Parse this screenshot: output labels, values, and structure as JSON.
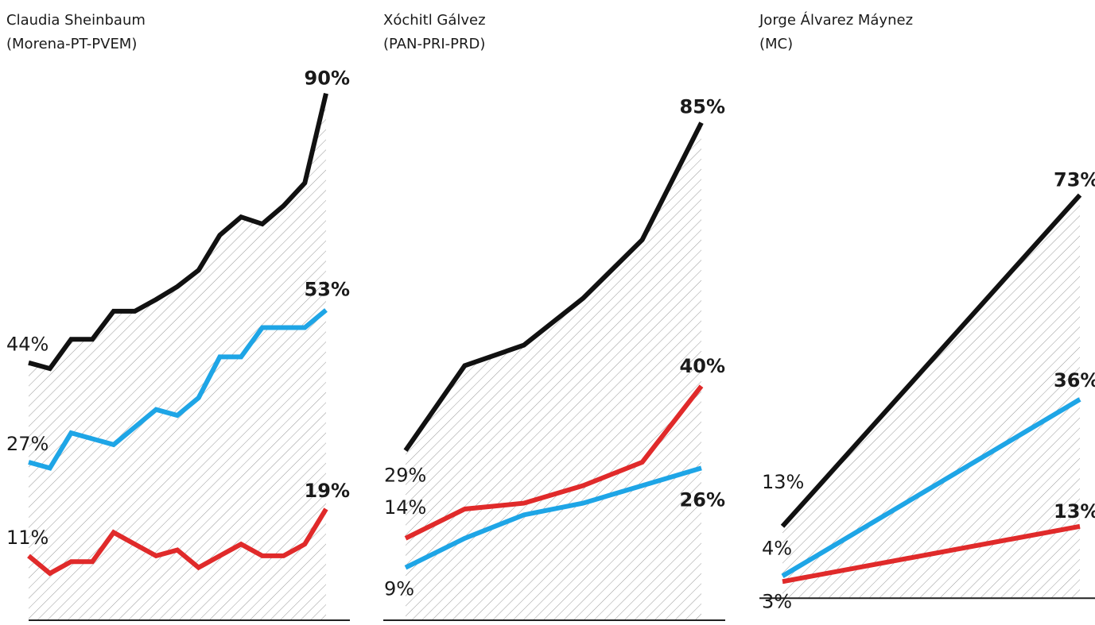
{
  "chart_data": [
    {
      "type": "line",
      "title": "Claudia Sheinbaum",
      "subtitle": "(Morena-PT-PVEM)",
      "ylim": [
        0,
        100
      ],
      "hatch": true,
      "series": [
        {
          "color": "#111111",
          "values": [
            44,
            43,
            48,
            48,
            52.8,
            52.8,
            54.8,
            57,
            59.8,
            65.8,
            68.9,
            67.7,
            70.8,
            74.7,
            90
          ],
          "value_labels": [
            "44%",
            null,
            null,
            null,
            null,
            null,
            null,
            null,
            null,
            null,
            null,
            null,
            null,
            null,
            "90%"
          ]
        },
        {
          "color": "#1ea5e6",
          "values": [
            27,
            26,
            32,
            31,
            30,
            33,
            36,
            35,
            38,
            45,
            45,
            50,
            50,
            50,
            53
          ],
          "value_labels": [
            "27%",
            null,
            null,
            null,
            null,
            null,
            null,
            null,
            null,
            null,
            null,
            null,
            null,
            null,
            "53%"
          ]
        },
        {
          "color": "#e02a2a",
          "values": [
            11,
            8,
            10,
            10,
            15,
            13,
            11,
            12,
            9,
            11,
            13,
            11,
            11,
            13,
            19
          ],
          "value_labels": [
            "11%",
            null,
            null,
            null,
            null,
            null,
            null,
            null,
            null,
            null,
            null,
            null,
            null,
            null,
            "19%"
          ]
        }
      ]
    },
    {
      "type": "line",
      "title": "Xóchitl Gálvez",
      "subtitle": "(PAN-PRI-PRD)",
      "ylim": [
        0,
        100
      ],
      "hatch": true,
      "series": [
        {
          "color": "#111111",
          "values": [
            29,
            43.5,
            47,
            55,
            65,
            85
          ],
          "value_labels": [
            "29%",
            null,
            null,
            null,
            null,
            "85%"
          ]
        },
        {
          "color": "#e02a2a",
          "values": [
            14,
            19,
            20,
            23,
            27,
            40
          ],
          "value_labels": [
            "14%",
            null,
            null,
            null,
            null,
            "40%"
          ]
        },
        {
          "color": "#1ea5e6",
          "values": [
            9,
            14,
            18,
            20,
            23,
            26
          ],
          "value_labels": [
            "9%",
            null,
            null,
            null,
            null,
            "26%"
          ]
        }
      ]
    },
    {
      "type": "line",
      "title": "Jorge Álvarez Máynez",
      "subtitle": "(MC)",
      "ylim": [
        -4,
        102
      ],
      "hatch": true,
      "series": [
        {
          "color": "#111111",
          "values": [
            13,
            73
          ],
          "value_labels": [
            "13%",
            "73%"
          ]
        },
        {
          "color": "#1ea5e6",
          "values": [
            4,
            36
          ],
          "value_labels": [
            "4%",
            "36%"
          ]
        },
        {
          "color": "#e02a2a",
          "values": [
            3,
            13
          ],
          "value_labels": [
            "3%",
            "13%"
          ]
        }
      ]
    }
  ]
}
